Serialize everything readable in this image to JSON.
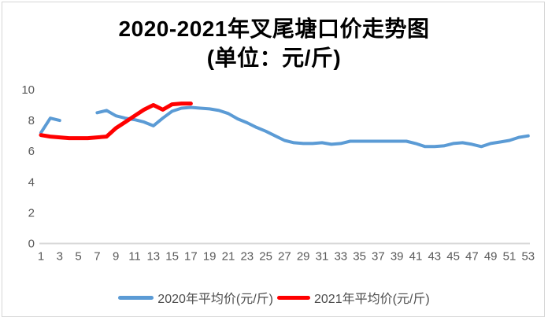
{
  "title": {
    "line1": "2020-2021年叉尾塘口价走势图",
    "line2": "(单位：元/斤)"
  },
  "chart_data": {
    "type": "line",
    "title": "2020-2021年叉尾塘口价走势图",
    "subtitle": "(单位：元/斤)",
    "xlabel": "",
    "ylabel": "",
    "x": [
      1,
      2,
      3,
      4,
      5,
      6,
      7,
      8,
      9,
      10,
      11,
      12,
      13,
      14,
      15,
      16,
      17,
      18,
      19,
      20,
      21,
      22,
      23,
      24,
      25,
      26,
      27,
      28,
      29,
      30,
      31,
      32,
      33,
      34,
      35,
      36,
      37,
      38,
      39,
      40,
      41,
      42,
      43,
      44,
      45,
      46,
      47,
      48,
      49,
      50,
      51,
      52,
      53
    ],
    "x_tick_labels": [
      1,
      3,
      5,
      7,
      9,
      11,
      13,
      15,
      17,
      19,
      21,
      23,
      25,
      27,
      29,
      31,
      33,
      35,
      37,
      39,
      41,
      43,
      45,
      47,
      49,
      51,
      53
    ],
    "y_ticks": [
      0,
      2,
      4,
      6,
      8,
      10
    ],
    "ylim": [
      0,
      10
    ],
    "grid": false,
    "legend_position": "bottom",
    "axis_color": "#d9d9d9",
    "tick_label_color": "#595959",
    "series": [
      {
        "name": "2020年平均价(元/斤)",
        "color": "#5B9BD5",
        "values": [
          7.2,
          8.15,
          8.0,
          null,
          null,
          null,
          8.5,
          8.65,
          8.3,
          8.15,
          8.05,
          7.9,
          7.65,
          8.15,
          8.6,
          8.8,
          8.85,
          8.8,
          8.75,
          8.65,
          8.45,
          8.1,
          7.85,
          7.55,
          7.3,
          7.0,
          6.7,
          6.55,
          6.5,
          6.5,
          6.55,
          6.45,
          6.5,
          6.65,
          6.65,
          6.65,
          6.65,
          6.65,
          6.65,
          6.65,
          6.5,
          6.3,
          6.3,
          6.35,
          6.5,
          6.55,
          6.45,
          6.3,
          6.5,
          6.6,
          6.7,
          6.9,
          7.0
        ]
      },
      {
        "name": "2021年平均价(元/斤)",
        "color": "#FF0000",
        "values": [
          7.05,
          6.95,
          6.9,
          6.85,
          6.85,
          6.85,
          6.9,
          6.95,
          7.5,
          7.9,
          8.3,
          8.7,
          9.0,
          8.7,
          9.05,
          9.1,
          9.1
        ]
      }
    ]
  }
}
